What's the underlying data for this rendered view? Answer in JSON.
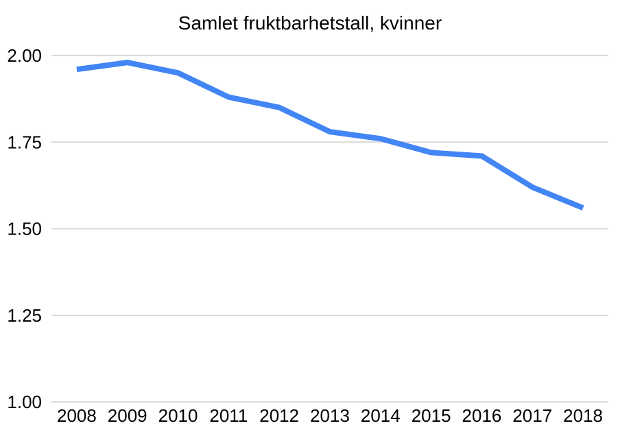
{
  "chart_data": {
    "type": "line",
    "title": "Samlet fruktbarhetstall, kvinner",
    "categories": [
      "2008",
      "2009",
      "2010",
      "2011",
      "2012",
      "2013",
      "2014",
      "2015",
      "2016",
      "2017",
      "2018"
    ],
    "values": [
      1.96,
      1.98,
      1.95,
      1.88,
      1.85,
      1.78,
      1.76,
      1.72,
      1.71,
      1.62,
      1.56
    ],
    "xlabel": "",
    "ylabel": "",
    "ylim": [
      1.0,
      2.0
    ],
    "ytick_labels": [
      "2.00",
      "1.75",
      "1.50",
      "1.25",
      "1.00"
    ],
    "grid": true,
    "legend": false,
    "colors": {
      "line": "#4285f4",
      "gridline": "#d9d9d9",
      "text": "#000000",
      "background": "#ffffff"
    }
  }
}
